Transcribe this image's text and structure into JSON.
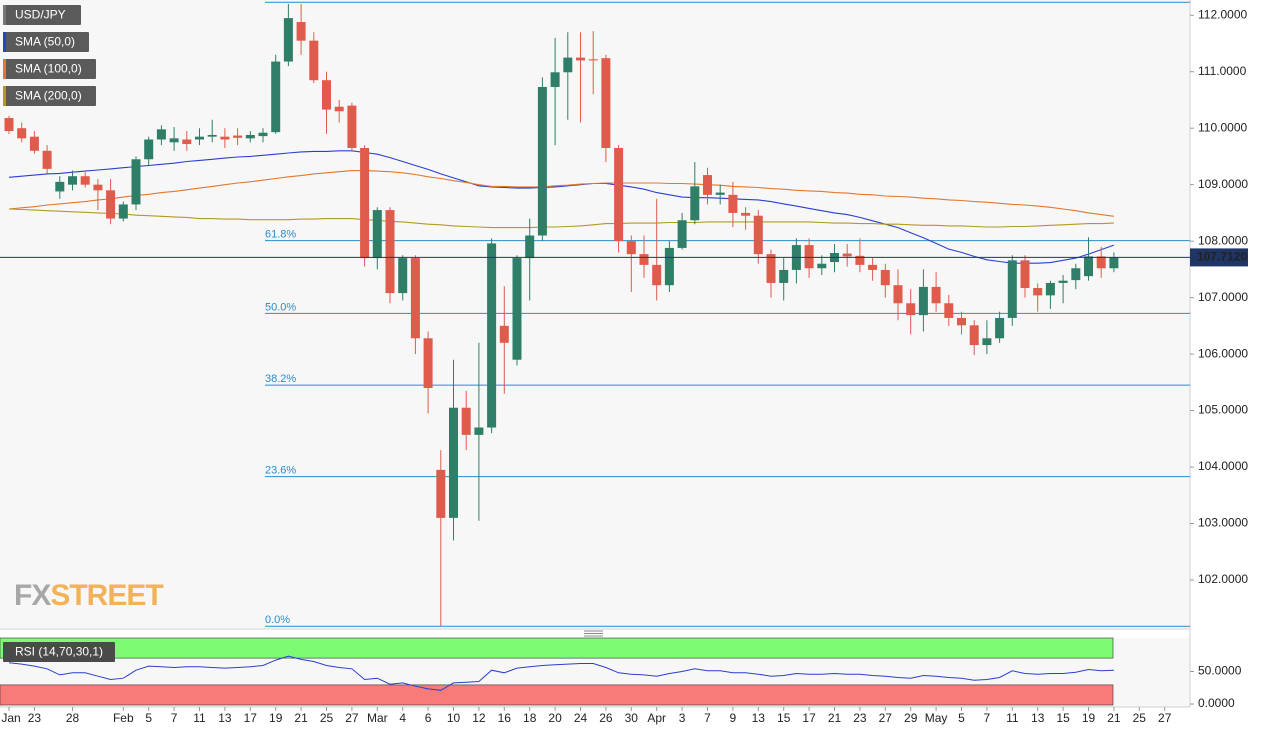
{
  "chart_data": {
    "type": "candlestick",
    "symbol": "USD/JPY",
    "up_color": "#2f7f68",
    "down_color": "#df5b4c",
    "categories": [
      "Jan",
      null,
      "23",
      null,
      null,
      "28",
      null,
      null,
      null,
      "Feb",
      null,
      "5",
      null,
      "7",
      null,
      "11",
      null,
      "13",
      null,
      "17",
      null,
      "19",
      null,
      "21",
      null,
      "25",
      null,
      "27",
      null,
      "Mar",
      null,
      "4",
      null,
      "6",
      null,
      "10",
      null,
      "12",
      null,
      "16",
      null,
      "18",
      null,
      "20",
      null,
      "24",
      null,
      "26",
      null,
      "30",
      null,
      "Apr",
      null,
      "3",
      null,
      "7",
      null,
      "9",
      null,
      "13",
      null,
      "15",
      null,
      "17",
      null,
      "21",
      null,
      "23",
      null,
      "27",
      null,
      "29",
      null,
      "May",
      null,
      "5",
      null,
      "7",
      null,
      "11",
      null,
      "13",
      null,
      "15",
      null,
      "19",
      null,
      "21",
      null,
      "25",
      null,
      "27",
      null
    ],
    "open": [
      110.18,
      110.0,
      109.85,
      109.6,
      108.88,
      109.0,
      109.15,
      109.0,
      108.9,
      108.4,
      108.65,
      109.45,
      109.8,
      109.75,
      109.8,
      109.8,
      109.85,
      109.85,
      109.87,
      109.82,
      109.86,
      109.93,
      111.18,
      111.88,
      111.55,
      110.85,
      110.38,
      110.4,
      109.65,
      107.7,
      108.55,
      107.08,
      107.7,
      106.28,
      103.95,
      103.1,
      105.05,
      104.57,
      104.7,
      106.5,
      105.9,
      107.7,
      108.1,
      110.73,
      110.99,
      111.25,
      111.22,
      111.24,
      109.65,
      108.0,
      107.77,
      107.58,
      107.22,
      107.88,
      108.37,
      109.17,
      108.82,
      108.82,
      108.5,
      108.45,
      107.77,
      107.26,
      107.49,
      107.93,
      107.52,
      107.63,
      107.78,
      107.74,
      107.58,
      107.49,
      107.22,
      106.9,
      106.69,
      107.19,
      106.9,
      106.64,
      106.51,
      106.16,
      106.28,
      106.64,
      107.66,
      107.17,
      107.04,
      107.26,
      107.31,
      107.38,
      107.73,
      107.52,
      null,
      null,
      null,
      null,
      null
    ],
    "high": [
      110.22,
      110.1,
      109.95,
      109.7,
      109.15,
      109.25,
      109.22,
      109.1,
      109.1,
      108.7,
      109.5,
      109.85,
      110.05,
      110.02,
      109.95,
      110.0,
      110.15,
      110.0,
      110.0,
      109.95,
      110.0,
      111.3,
      112.2,
      112.2,
      111.7,
      111.0,
      110.5,
      110.45,
      109.7,
      108.6,
      108.6,
      107.75,
      107.75,
      106.4,
      104.3,
      105.9,
      105.35,
      106.2,
      108.05,
      107.2,
      107.75,
      108.4,
      110.9,
      111.6,
      111.7,
      111.7,
      111.72,
      111.3,
      109.7,
      108.1,
      108.1,
      108.75,
      108.0,
      108.5,
      109.4,
      109.3,
      109.0,
      109.05,
      108.6,
      108.55,
      107.85,
      107.7,
      108.05,
      108.05,
      107.75,
      107.95,
      107.95,
      108.05,
      107.7,
      107.6,
      107.5,
      107.15,
      107.5,
      107.45,
      107.05,
      106.75,
      106.6,
      106.6,
      106.75,
      107.75,
      107.75,
      107.25,
      107.3,
      107.4,
      107.6,
      108.07,
      107.9,
      107.8,
      null,
      null,
      null,
      null,
      null
    ],
    "low": [
      109.9,
      109.75,
      109.55,
      109.2,
      108.75,
      108.9,
      108.95,
      108.55,
      108.3,
      108.35,
      108.55,
      109.35,
      109.7,
      109.6,
      109.6,
      109.7,
      109.75,
      109.65,
      109.7,
      109.75,
      109.75,
      109.9,
      111.1,
      111.3,
      110.8,
      109.9,
      110.1,
      109.6,
      107.55,
      107.5,
      106.9,
      106.95,
      106.0,
      104.95,
      101.18,
      102.7,
      104.3,
      103.05,
      104.6,
      105.3,
      105.8,
      106.95,
      108.0,
      109.7,
      110.15,
      110.1,
      110.6,
      109.4,
      107.8,
      107.1,
      107.35,
      106.95,
      107.1,
      107.85,
      108.3,
      108.65,
      108.65,
      108.25,
      108.2,
      107.6,
      107.0,
      106.95,
      107.25,
      107.35,
      107.4,
      107.45,
      107.55,
      107.45,
      107.3,
      107.0,
      106.6,
      106.35,
      106.4,
      106.75,
      106.5,
      106.35,
      105.98,
      106.0,
      106.2,
      106.5,
      107.0,
      106.75,
      106.8,
      106.9,
      107.15,
      107.3,
      107.35,
      107.45,
      null,
      null,
      null,
      null,
      null
    ],
    "close": [
      109.95,
      109.82,
      109.6,
      109.28,
      109.05,
      109.15,
      109.0,
      108.9,
      108.4,
      108.65,
      109.45,
      109.8,
      109.98,
      109.82,
      109.72,
      109.85,
      109.88,
      109.8,
      109.83,
      109.88,
      109.92,
      111.18,
      111.95,
      111.55,
      110.85,
      110.33,
      110.3,
      109.65,
      107.7,
      108.55,
      107.08,
      107.7,
      106.28,
      105.4,
      103.1,
      105.05,
      104.57,
      104.7,
      107.96,
      106.2,
      107.7,
      108.1,
      110.73,
      110.99,
      111.25,
      111.2,
      111.2,
      109.65,
      108.0,
      107.77,
      107.58,
      107.22,
      107.88,
      108.37,
      108.97,
      108.82,
      108.86,
      108.5,
      108.45,
      107.77,
      107.26,
      107.49,
      107.93,
      107.52,
      107.6,
      107.79,
      107.73,
      107.58,
      107.49,
      107.22,
      106.9,
      106.69,
      107.19,
      106.9,
      106.64,
      106.51,
      106.16,
      106.28,
      106.64,
      107.66,
      107.17,
      107.04,
      107.26,
      107.3,
      107.52,
      107.73,
      107.52,
      107.712,
      null,
      null,
      null,
      null,
      null
    ],
    "last_price_label": "107.7120",
    "last_price_color": "#1f3566",
    "series": [
      {
        "name": "SMA (50,0)",
        "color": "#2b3fd0",
        "values": [
          109.13,
          109.15,
          109.17,
          109.19,
          109.2,
          109.22,
          109.24,
          109.26,
          109.28,
          109.3,
          109.32,
          109.34,
          109.36,
          109.38,
          109.41,
          109.43,
          109.45,
          109.47,
          109.49,
          109.5,
          109.52,
          109.54,
          109.56,
          109.58,
          109.59,
          109.59,
          109.6,
          109.6,
          109.57,
          109.54,
          109.48,
          109.41,
          109.34,
          109.27,
          109.19,
          109.12,
          109.05,
          108.98,
          108.96,
          108.95,
          108.94,
          108.94,
          108.95,
          108.96,
          108.98,
          109.0,
          109.02,
          109.02,
          108.99,
          108.96,
          108.92,
          108.86,
          108.82,
          108.78,
          108.77,
          108.77,
          108.76,
          108.75,
          108.74,
          108.73,
          108.7,
          108.66,
          108.62,
          108.58,
          108.54,
          108.5,
          108.47,
          108.42,
          108.36,
          108.3,
          108.24,
          108.15,
          108.06,
          107.96,
          107.86,
          107.8,
          107.73,
          107.67,
          107.64,
          107.61,
          107.61,
          107.61,
          107.62,
          107.66,
          107.7,
          107.77,
          107.85,
          107.93,
          null,
          null,
          null,
          null,
          null
        ]
      },
      {
        "name": "SMA (100,0)",
        "color": "#e2782f",
        "values": [
          108.57,
          108.59,
          108.61,
          108.64,
          108.66,
          108.68,
          108.7,
          108.73,
          108.75,
          108.78,
          108.81,
          108.83,
          108.86,
          108.88,
          108.91,
          108.94,
          108.97,
          109.0,
          109.03,
          109.05,
          109.08,
          109.11,
          109.14,
          109.16,
          109.19,
          109.21,
          109.23,
          109.25,
          109.25,
          109.24,
          109.23,
          109.21,
          109.18,
          109.14,
          109.11,
          109.07,
          109.04,
          109.0,
          108.97,
          108.97,
          108.96,
          108.96,
          108.96,
          108.98,
          108.99,
          109.01,
          109.02,
          109.03,
          109.03,
          109.03,
          109.03,
          109.03,
          109.02,
          109.02,
          109.01,
          109.0,
          108.99,
          108.97,
          108.96,
          108.95,
          108.93,
          108.92,
          108.9,
          108.89,
          108.88,
          108.86,
          108.85,
          108.83,
          108.82,
          108.8,
          108.79,
          108.78,
          108.76,
          108.75,
          108.73,
          108.72,
          108.7,
          108.69,
          108.67,
          108.65,
          108.64,
          108.62,
          108.6,
          108.57,
          108.54,
          108.5,
          108.47,
          108.44,
          null,
          null,
          null,
          null,
          null
        ]
      },
      {
        "name": "SMA (200,0)",
        "color": "#b39a22",
        "values": [
          108.57,
          108.56,
          108.55,
          108.54,
          108.53,
          108.52,
          108.51,
          108.5,
          108.49,
          108.48,
          108.46,
          108.45,
          108.44,
          108.43,
          108.42,
          108.4,
          108.4,
          108.39,
          108.39,
          108.38,
          108.38,
          108.38,
          108.38,
          108.39,
          108.39,
          108.4,
          108.4,
          108.4,
          108.38,
          108.37,
          108.35,
          108.34,
          108.32,
          108.3,
          108.29,
          108.27,
          108.26,
          108.25,
          108.24,
          108.24,
          108.24,
          108.24,
          108.25,
          108.25,
          108.26,
          108.27,
          108.29,
          108.31,
          108.31,
          108.32,
          108.32,
          108.32,
          108.33,
          108.33,
          108.33,
          108.34,
          108.34,
          108.34,
          108.34,
          108.34,
          108.34,
          108.34,
          108.34,
          108.34,
          108.33,
          108.32,
          108.32,
          108.31,
          108.31,
          108.3,
          108.3,
          108.29,
          108.28,
          108.28,
          108.27,
          108.27,
          108.26,
          108.25,
          108.25,
          108.26,
          108.26,
          108.27,
          108.28,
          108.29,
          108.3,
          108.31,
          108.31,
          108.32,
          null,
          null,
          null,
          null,
          null
        ]
      }
    ],
    "ylim": [
      101.15,
      112.27
    ],
    "yticks": [
      {
        "value": 112,
        "label": "112.0000"
      },
      {
        "value": 111,
        "label": "111.0000"
      },
      {
        "value": 110,
        "label": "110.0000"
      },
      {
        "value": 109,
        "label": "109.0000"
      },
      {
        "value": 108,
        "label": "108.0000"
      },
      {
        "value": 107,
        "label": "107.0000"
      },
      {
        "value": 106,
        "label": "106.0000"
      },
      {
        "value": 105,
        "label": "105.0000"
      },
      {
        "value": 104,
        "label": "104.0000"
      },
      {
        "value": 103,
        "label": "103.0000"
      },
      {
        "value": 102,
        "label": "102.0000"
      }
    ],
    "fib_color": "#2a8cc8",
    "fib_levels": [
      {
        "label": "0.0%",
        "price": 101.18
      },
      {
        "label": "23.6%",
        "price": 103.83
      },
      {
        "label": "38.2%",
        "price": 105.45
      },
      {
        "label": "50.0%",
        "price": 106.72
      },
      {
        "label": "61.8%",
        "price": 108.01
      },
      {
        "price": 112.23
      }
    ],
    "watermark": [
      "FX",
      "STREET"
    ],
    "rsi": {
      "type": "line",
      "title": "RSI (14,70,30,1)",
      "color": "#2b3fd0",
      "values": [
        63,
        61,
        58,
        54,
        45,
        48,
        48,
        43,
        38,
        40,
        52,
        58,
        57,
        56,
        57,
        57,
        56,
        55,
        56,
        57,
        59,
        67,
        73,
        68,
        65,
        59,
        56,
        54,
        38,
        40,
        31,
        33,
        28,
        24,
        22,
        33,
        34,
        35,
        52,
        48,
        55,
        57,
        59,
        60,
        61,
        62,
        62,
        56,
        48,
        46,
        45,
        43,
        47,
        50,
        54,
        51,
        51,
        48,
        48,
        46,
        43,
        44,
        47,
        46,
        46,
        47,
        46,
        46,
        44,
        43,
        41,
        40,
        44,
        43,
        41,
        40,
        37,
        38,
        41,
        51,
        47,
        46,
        47,
        47,
        49,
        53,
        51,
        52,
        null,
        null,
        null,
        null,
        null
      ],
      "ylim": [
        0,
        100
      ],
      "yticks": [
        {
          "value": 50,
          "label": "50.0000"
        },
        {
          "value": 0,
          "label": "0.0000"
        }
      ],
      "bands": [
        {
          "from": 70,
          "to": 100,
          "color": "#7dfb72"
        },
        {
          "from": 0,
          "to": 30,
          "color": "#f77b78"
        }
      ]
    }
  }
}
